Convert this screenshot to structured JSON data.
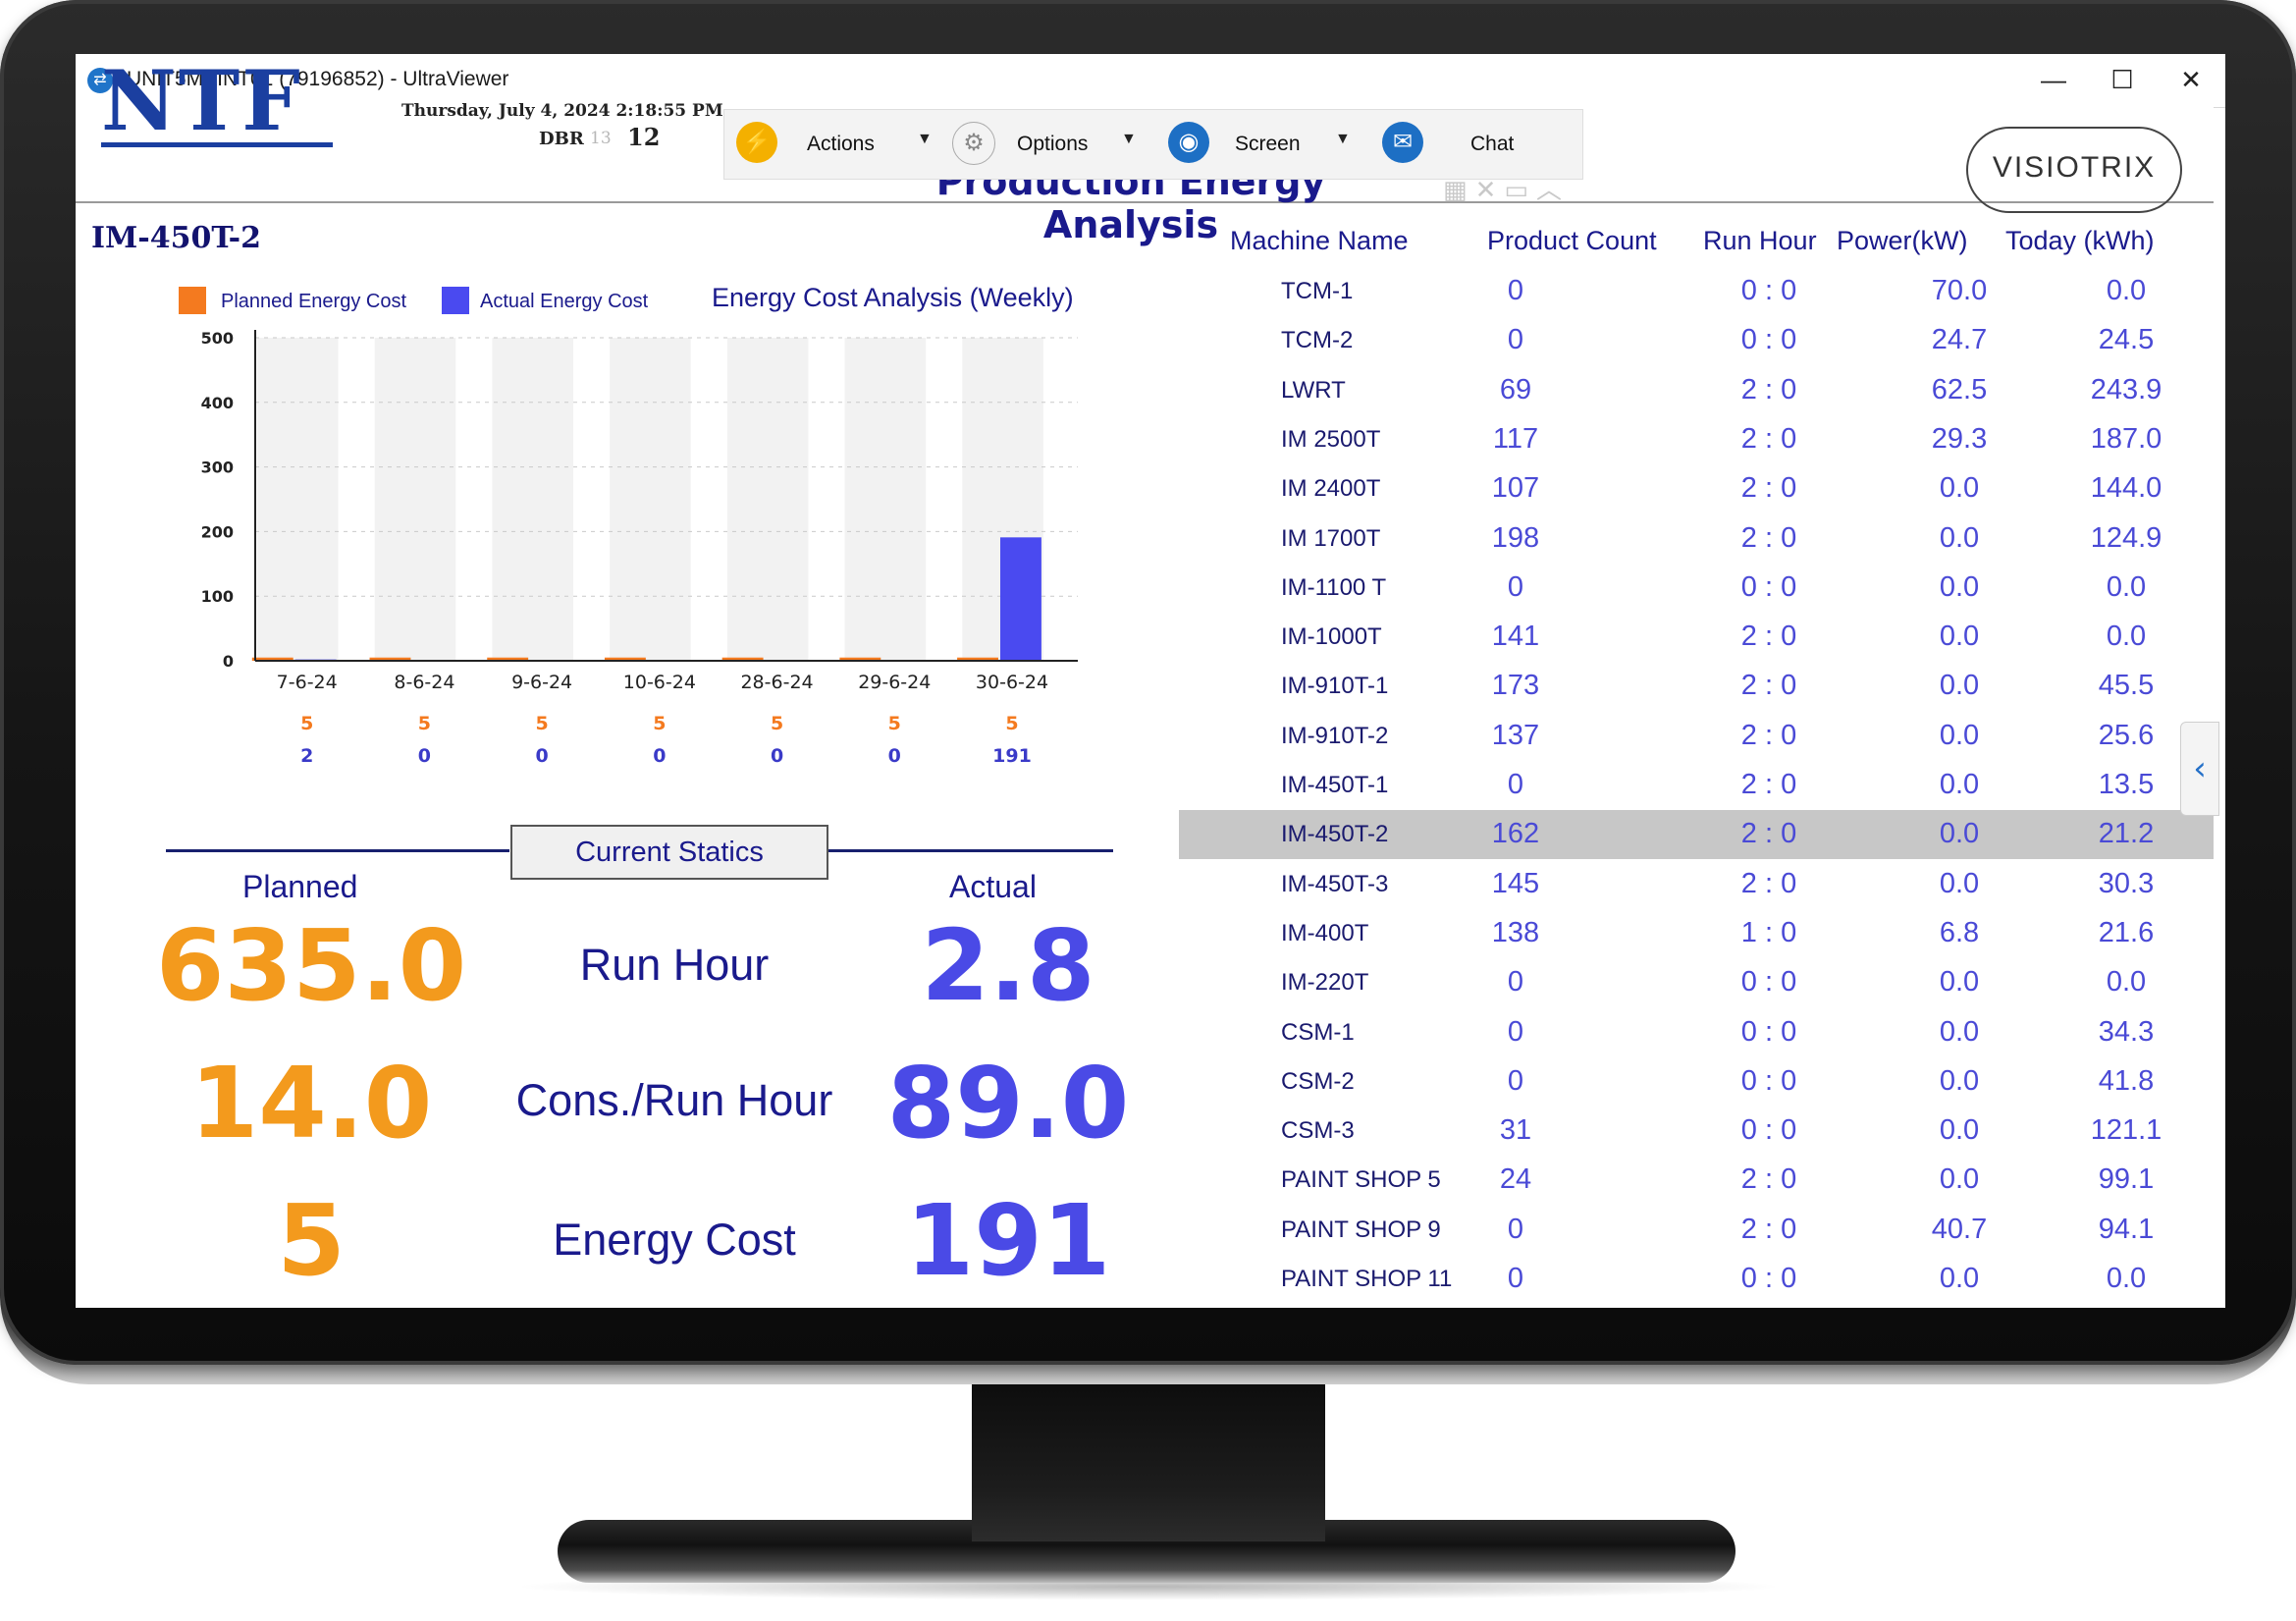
{
  "window": {
    "title": "UNIT5MAINT01 (79196852) - UltraViewer",
    "minimize": "—",
    "maximize": "☐",
    "close": "✕"
  },
  "toolbar": {
    "actions": "Actions",
    "options": "Options",
    "screen": "Screen",
    "chat": "Chat"
  },
  "header": {
    "logo": "NTF",
    "datetime": "Thursday, July 4, 2024 2:18:55 PM",
    "dbr_label": "DBR",
    "dbr_dim": "13",
    "dbr_value": "12",
    "page_title": "Production Energy Analysis",
    "partner_logo": "VISIOTRIX"
  },
  "machine": {
    "name": "IM-450T-2"
  },
  "chart_data": {
    "type": "bar",
    "title": "Energy Cost Analysis (Weekly)",
    "categories": [
      "7-6-24",
      "8-6-24",
      "9-6-24",
      "10-6-24",
      "28-6-24",
      "29-6-24",
      "30-6-24"
    ],
    "series": [
      {
        "name": "Planned Energy Cost",
        "values": [
          5,
          5,
          5,
          5,
          5,
          5,
          5
        ],
        "color": "#f47a1f"
      },
      {
        "name": "Actual Energy Cost",
        "values": [
          2,
          0,
          0,
          0,
          0,
          0,
          191
        ],
        "color": "#4a4af0"
      }
    ],
    "ylim": [
      0,
      500
    ],
    "yticks": [
      0,
      100,
      200,
      300,
      400,
      500
    ],
    "grid": true,
    "legend": "top-left"
  },
  "stats": {
    "heading": "Current Statics",
    "planned_label": "Planned",
    "actual_label": "Actual",
    "rows": [
      {
        "label": "Run Hour",
        "planned": "635.0",
        "actual": "2.8"
      },
      {
        "label": "Cons./Run Hour",
        "planned": "14.0",
        "actual": "89.0"
      },
      {
        "label": "Energy Cost",
        "planned": "5",
        "actual": "191"
      }
    ]
  },
  "table": {
    "headers": {
      "name": "Machine Name",
      "product_count": "Product Count",
      "run_hour": "Run Hour",
      "power": "Power(kW)",
      "today": "Today (kWh)"
    },
    "rows": [
      {
        "name": "TCM-1",
        "count": "0",
        "run_hour": "0 : 0",
        "power": "70.0",
        "today": "0.0"
      },
      {
        "name": "TCM-2",
        "count": "0",
        "run_hour": "0 : 0",
        "power": "24.7",
        "today": "24.5"
      },
      {
        "name": "LWRT",
        "count": "69",
        "run_hour": "2 : 0",
        "power": "62.5",
        "today": "243.9"
      },
      {
        "name": "IM 2500T",
        "count": "117",
        "run_hour": "2 : 0",
        "power": "29.3",
        "today": "187.0"
      },
      {
        "name": "IM 2400T",
        "count": "107",
        "run_hour": "2 : 0",
        "power": "0.0",
        "today": "144.0"
      },
      {
        "name": "IM 1700T",
        "count": "198",
        "run_hour": "2 : 0",
        "power": "0.0",
        "today": "124.9"
      },
      {
        "name": "IM-1100 T",
        "count": "0",
        "run_hour": "0 : 0",
        "power": "0.0",
        "today": "0.0"
      },
      {
        "name": "IM-1000T",
        "count": "141",
        "run_hour": "2 : 0",
        "power": "0.0",
        "today": "0.0"
      },
      {
        "name": "IM-910T-1",
        "count": "173",
        "run_hour": "2 : 0",
        "power": "0.0",
        "today": "45.5"
      },
      {
        "name": "IM-910T-2",
        "count": "137",
        "run_hour": "2 : 0",
        "power": "0.0",
        "today": "25.6"
      },
      {
        "name": "IM-450T-1",
        "count": "0",
        "run_hour": "2 : 0",
        "power": "0.0",
        "today": "13.5"
      },
      {
        "name": "IM-450T-2",
        "count": "162",
        "run_hour": "2 : 0",
        "power": "0.0",
        "today": "21.2",
        "selected": true
      },
      {
        "name": "IM-450T-3",
        "count": "145",
        "run_hour": "2 : 0",
        "power": "0.0",
        "today": "30.3"
      },
      {
        "name": "IM-400T",
        "count": "138",
        "run_hour": "1 : 0",
        "power": "6.8",
        "today": "21.6"
      },
      {
        "name": "IM-220T",
        "count": "0",
        "run_hour": "0 : 0",
        "power": "0.0",
        "today": "0.0"
      },
      {
        "name": "CSM-1",
        "count": "0",
        "run_hour": "0 : 0",
        "power": "0.0",
        "today": "34.3"
      },
      {
        "name": "CSM-2",
        "count": "0",
        "run_hour": "0 : 0",
        "power": "0.0",
        "today": "41.8"
      },
      {
        "name": "CSM-3",
        "count": "31",
        "run_hour": "0 : 0",
        "power": "0.0",
        "today": "121.1"
      },
      {
        "name": "PAINT SHOP 5",
        "count": "24",
        "run_hour": "2 : 0",
        "power": "0.0",
        "today": "99.1"
      },
      {
        "name": "PAINT SHOP 9",
        "count": "0",
        "run_hour": "2 : 0",
        "power": "40.7",
        "today": "94.1"
      },
      {
        "name": "PAINT SHOP 11",
        "count": "0",
        "run_hour": "0 : 0",
        "power": "0.0",
        "today": "0.0"
      }
    ]
  },
  "side_panel": {
    "toggle_icon": "chevron-left-icon"
  }
}
